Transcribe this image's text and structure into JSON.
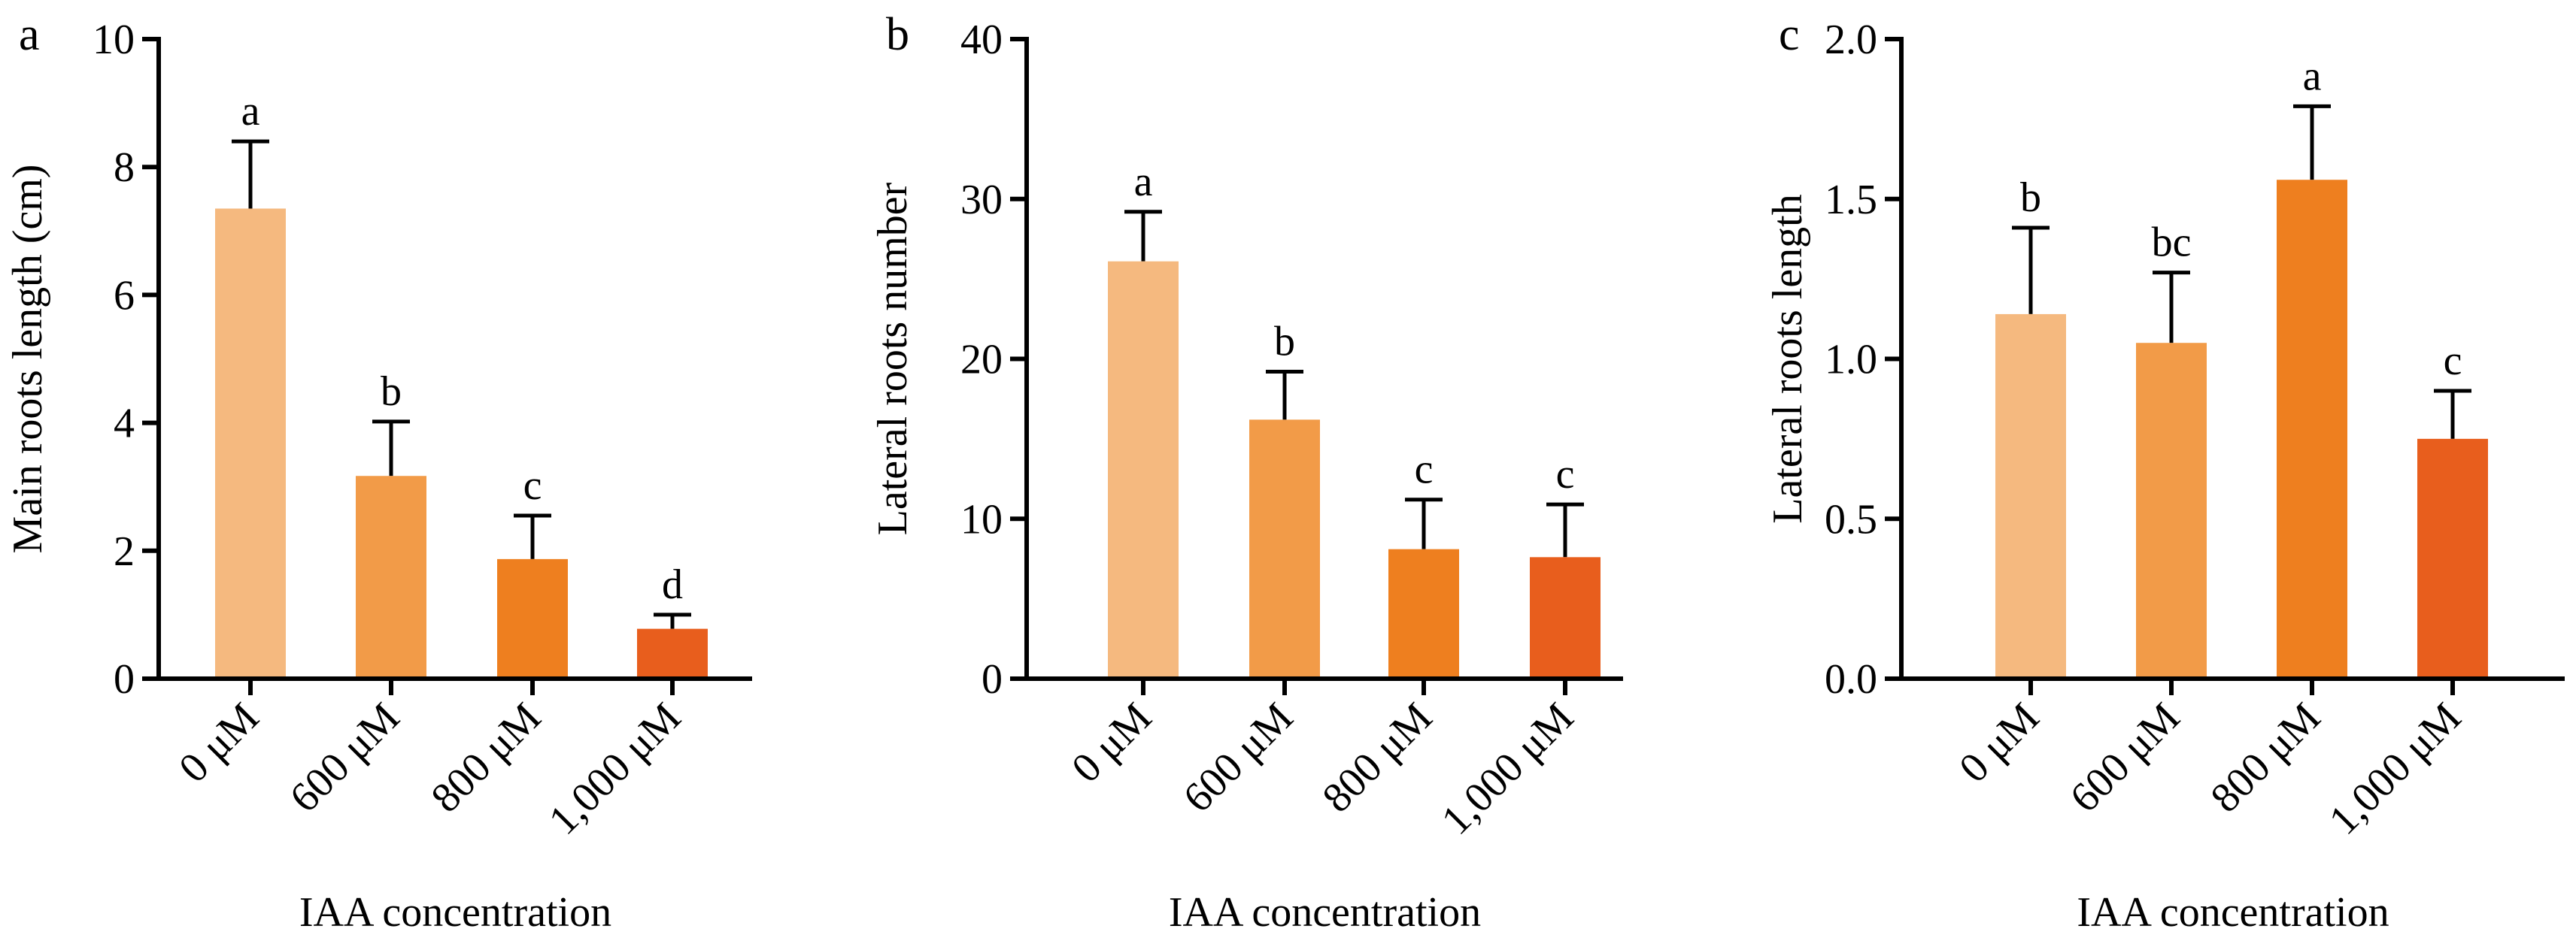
{
  "chart_data": [
    {
      "panel_label": "a",
      "type": "bar",
      "ylabel": "Main roots length (cm)",
      "xlabel": "IAA concentration",
      "ylim": [
        0,
        10
      ],
      "yticks": [
        0,
        2,
        4,
        6,
        8,
        10
      ],
      "categories": [
        "0 μM",
        "600 μM",
        "800 μM",
        "1,000 μM"
      ],
      "values": [
        7.35,
        3.17,
        1.87,
        0.78
      ],
      "errors": [
        1.05,
        0.85,
        0.68,
        0.22
      ],
      "significance": [
        "a",
        "b",
        "c",
        "d"
      ],
      "colors": [
        "#F5B97F",
        "#F29B48",
        "#EE7F1F",
        "#E85E1D"
      ]
    },
    {
      "panel_label": "b",
      "type": "bar",
      "ylabel": "Lateral roots number",
      "xlabel": "IAA concentration",
      "ylim": [
        0,
        40
      ],
      "yticks": [
        0,
        10,
        20,
        30,
        40
      ],
      "categories": [
        "0 μM",
        "600 μM",
        "800 μM",
        "1,000 μM"
      ],
      "values": [
        26.1,
        16.2,
        8.1,
        7.6
      ],
      "errors": [
        3.1,
        3.0,
        3.1,
        3.3
      ],
      "significance": [
        "a",
        "b",
        "c",
        "c"
      ],
      "colors": [
        "#F5B97F",
        "#F29B48",
        "#EE7F1F",
        "#E85E1D"
      ]
    },
    {
      "panel_label": "c",
      "type": "bar",
      "ylabel": "Lateral roots length",
      "xlabel": "IAA concentration",
      "ylim": [
        0,
        2.0
      ],
      "yticks": [
        "0.0",
        "0.5",
        "1.0",
        "1.5",
        "2.0"
      ],
      "categories": [
        "0 μM",
        "600 μM",
        "800 μM",
        "1,000 μM"
      ],
      "values": [
        1.14,
        1.05,
        1.56,
        0.75
      ],
      "errors": [
        0.27,
        0.22,
        0.23,
        0.15
      ],
      "significance": [
        "b",
        "bc",
        "a",
        "c"
      ],
      "colors": [
        "#F5B97F",
        "#F29B48",
        "#EE7F1F",
        "#E85E1D"
      ]
    }
  ]
}
